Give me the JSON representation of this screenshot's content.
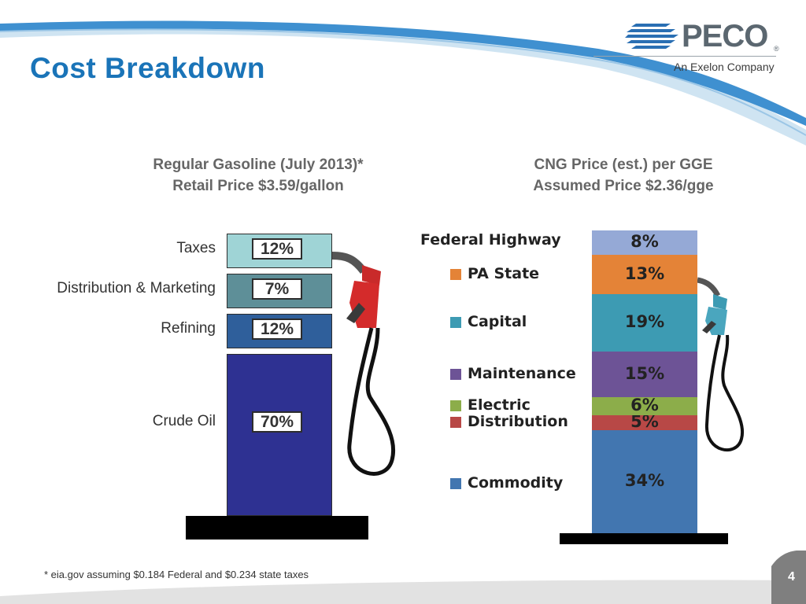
{
  "slide": {
    "title": "Cost Breakdown",
    "footnote": "* eia.gov assuming $0.184 Federal and $0.234 state taxes",
    "page_number": "4"
  },
  "logo": {
    "name": "PECO",
    "tagline": "An Exelon Company",
    "mark": "®"
  },
  "left_heading": {
    "line1": "Regular Gasoline (July 2013)*",
    "line2": "Retail Price $3.59/gallon"
  },
  "right_heading": {
    "line1": "CNG Price (est.) per GGE",
    "line2": "Assumed Price $2.36/gge"
  },
  "colors": {
    "title_blue": "#1a74b8",
    "taxes": "#9fd4d6",
    "distribution_marketing": "#5e8f98",
    "refining": "#2f5f9b",
    "crude_oil": "#2e3192",
    "federal_highway": "#95a9d6",
    "pa_state": "#e48337",
    "capital": "#3d9bb3",
    "maintenance": "#6d5396",
    "electric": "#8cad4a",
    "distribution": "#b84846",
    "commodity": "#4276b0"
  },
  "chart_data": [
    {
      "type": "bar",
      "title": "Regular Gasoline (July 2013)*",
      "subtitle": "Retail Price $3.59/gallon",
      "stacked": true,
      "categories": [
        "Crude Oil",
        "Refining",
        "Distribution & Marketing",
        "Taxes"
      ],
      "values": [
        70,
        12,
        7,
        12
      ],
      "value_labels": [
        "70%",
        "12%",
        "7%",
        "12%"
      ],
      "unit": "%"
    },
    {
      "type": "bar",
      "title": "CNG Price (est.) per GGE",
      "subtitle": "Assumed Price $2.36/gge",
      "stacked": true,
      "categories": [
        "Commodity",
        "Distribution",
        "Electric",
        "Maintenance",
        "Capital",
        "PA State",
        "Federal Highway"
      ],
      "values": [
        34,
        5,
        6,
        15,
        19,
        13,
        8
      ],
      "value_labels": [
        "34%",
        "5%",
        "6%",
        "15%",
        "19%",
        "13%",
        "8%"
      ],
      "unit": "%",
      "legend": "left"
    }
  ]
}
